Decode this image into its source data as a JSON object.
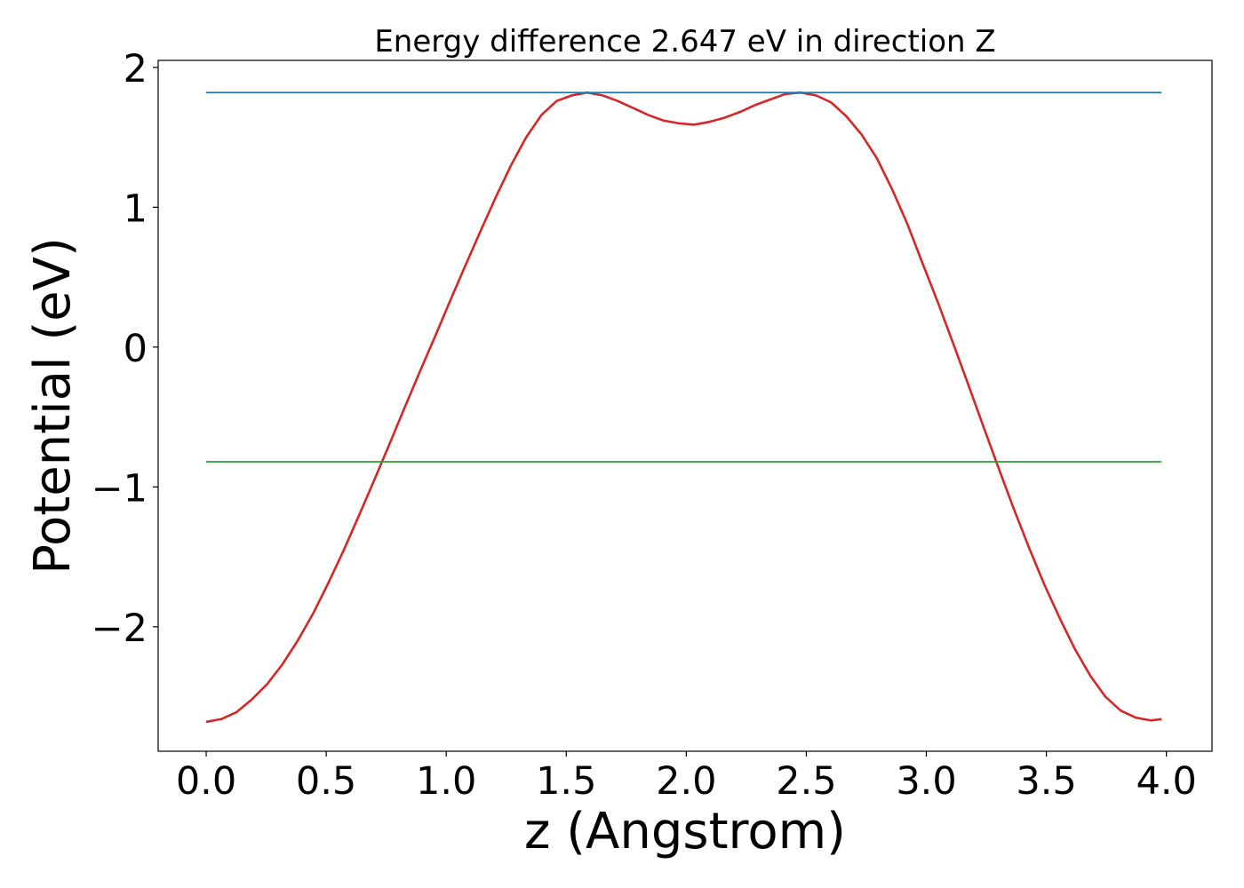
{
  "chart_data": {
    "type": "line",
    "title": "Energy difference 2.647 eV in direction Z",
    "xlabel": "z (Angstrom)",
    "ylabel": "Potential (eV)",
    "xlim": [
      -0.2,
      4.19
    ],
    "ylim": [
      -2.89,
      2.05
    ],
    "x_ticks": [
      0.0,
      0.5,
      1.0,
      1.5,
      2.0,
      2.5,
      3.0,
      3.5,
      4.0
    ],
    "x_tick_labels": [
      "0.0",
      "0.5",
      "1.0",
      "1.5",
      "2.0",
      "2.5",
      "3.0",
      "3.5",
      "4.0"
    ],
    "y_ticks": [
      -2,
      -1,
      0,
      1,
      2
    ],
    "y_tick_labels": [
      "−2",
      "−1",
      "0",
      "1",
      "2"
    ],
    "grid": false,
    "series": [
      {
        "color": "#d62728",
        "x": [
          0.0,
          0.063,
          0.127,
          0.19,
          0.254,
          0.317,
          0.381,
          0.444,
          0.508,
          0.571,
          0.635,
          0.698,
          0.762,
          0.825,
          0.889,
          0.952,
          1.016,
          1.079,
          1.143,
          1.206,
          1.27,
          1.333,
          1.397,
          1.46,
          1.524,
          1.587,
          1.651,
          1.714,
          1.778,
          1.841,
          1.905,
          1.968,
          2.032,
          2.095,
          2.159,
          2.222,
          2.286,
          2.349,
          2.413,
          2.476,
          2.54,
          2.603,
          2.667,
          2.73,
          2.794,
          2.857,
          2.921,
          2.984,
          3.048,
          3.111,
          3.175,
          3.238,
          3.302,
          3.365,
          3.429,
          3.492,
          3.556,
          3.619,
          3.683,
          3.746,
          3.81,
          3.873,
          3.937,
          3.98
        ],
        "y": [
          -2.68,
          -2.66,
          -2.61,
          -2.52,
          -2.41,
          -2.27,
          -2.1,
          -1.91,
          -1.69,
          -1.46,
          -1.21,
          -0.96,
          -0.7,
          -0.44,
          -0.18,
          0.07,
          0.33,
          0.58,
          0.83,
          1.07,
          1.3,
          1.5,
          1.66,
          1.76,
          1.8,
          1.82,
          1.8,
          1.76,
          1.71,
          1.66,
          1.62,
          1.6,
          1.59,
          1.61,
          1.64,
          1.68,
          1.73,
          1.77,
          1.81,
          1.82,
          1.8,
          1.75,
          1.65,
          1.52,
          1.35,
          1.13,
          0.88,
          0.6,
          0.32,
          0.03,
          -0.27,
          -0.57,
          -0.87,
          -1.16,
          -1.44,
          -1.7,
          -1.94,
          -2.16,
          -2.35,
          -2.5,
          -2.6,
          -2.65,
          -2.67,
          -2.66
        ]
      },
      {
        "color": "#1f77b4",
        "x": [
          0.0,
          3.98
        ],
        "y": [
          1.82,
          1.82
        ]
      },
      {
        "color": "#2ca02c",
        "x": [
          0.0,
          3.98
        ],
        "y": [
          -0.82,
          -0.82
        ]
      }
    ]
  }
}
